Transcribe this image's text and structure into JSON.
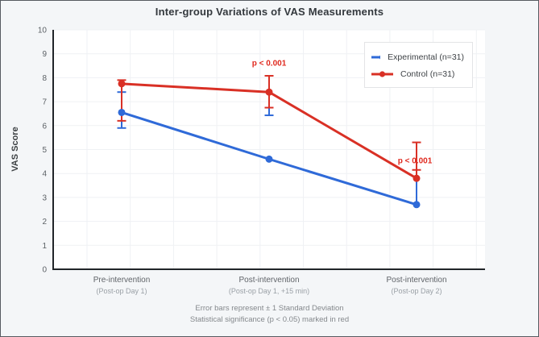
{
  "title": "Inter-group Variations of VAS Measurements",
  "chart_data": {
    "type": "line",
    "title": "Inter-group Variations of VAS Measurements",
    "xlabel": "",
    "ylabel": "VAS Score",
    "ylim": [
      0,
      10
    ],
    "ytick_step": 1,
    "grid": true,
    "legend_position": "top-right",
    "categories": [
      {
        "line1": "Pre-intervention",
        "line2": "(Post-op Day 1)"
      },
      {
        "line1": "Post-intervention",
        "line2": "(Post-op Day 1, +15 min)"
      },
      {
        "line1": "Post-intervention",
        "line2": "(Post-op Day 2)"
      }
    ],
    "series": [
      {
        "name": "Experimental (n=31)",
        "color": "#2f6ad8",
        "values": [
          6.55,
          4.6,
          2.7
        ],
        "error_bars": [
          {
            "lo": 5.9,
            "hi": 7.4,
            "caps": [
              5.9,
              7.4
            ]
          },
          {
            "lo": 6.43,
            "hi": 6.75,
            "caps": [
              6.43
            ]
          },
          {
            "lo": 2.7,
            "hi": 4.1,
            "caps": []
          }
        ]
      },
      {
        "name": "Control (n=31)",
        "color": "#d93025",
        "values": [
          7.75,
          7.4,
          3.8
        ],
        "error_bars": [
          {
            "lo": 6.2,
            "hi": 7.9,
            "caps": [
              6.2,
              7.9
            ]
          },
          {
            "lo": 6.75,
            "hi": 8.08,
            "caps": [
              6.75,
              8.08
            ]
          },
          {
            "lo": 3.8,
            "hi": 5.3,
            "caps": [
              4.15,
              5.3
            ]
          }
        ]
      }
    ],
    "annotations": [
      {
        "text": "p < 0.001",
        "x_group": 1,
        "y_value": 8.5,
        "dx": 0,
        "color": "#e02a1f"
      },
      {
        "text": "p < 0.001",
        "x_group": 2,
        "y_value": 4.42,
        "dx": -2,
        "color": "#e02a1f"
      }
    ],
    "error_bar_note": "± 1 Standard Deviation"
  },
  "footer": {
    "line1": "Error bars represent ± 1 Standard Deviation",
    "line2": "Statistical significance (p < 0.05) marked in red"
  }
}
